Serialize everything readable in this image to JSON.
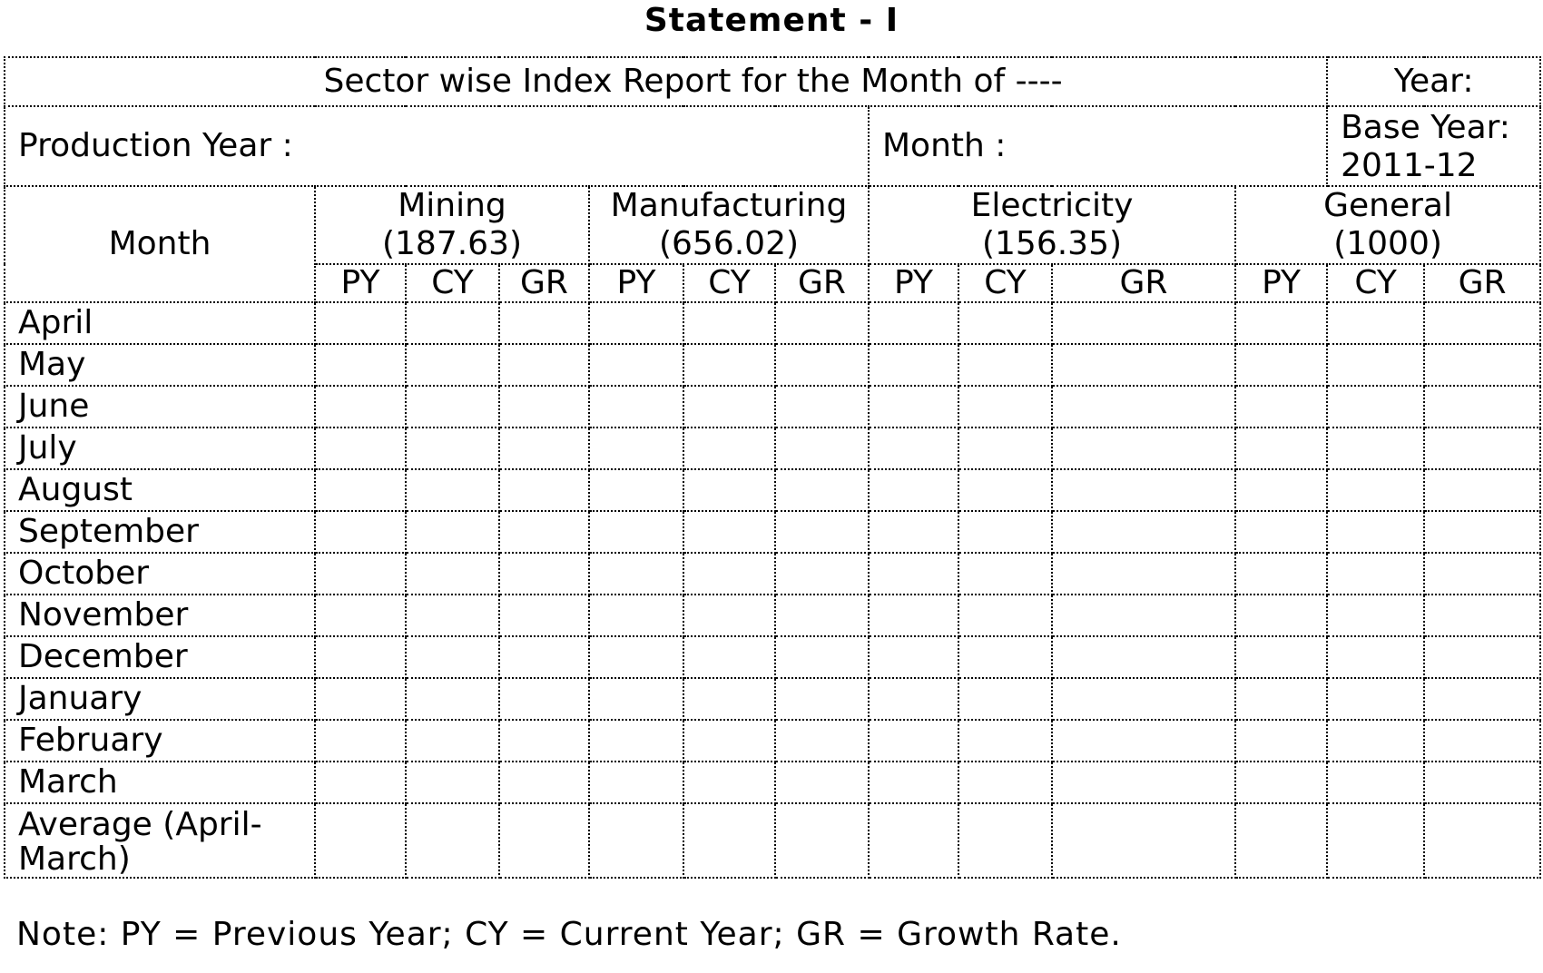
{
  "title": "Statement - I",
  "header": {
    "report_title": "Sector wise Index Report for the Month of ----",
    "year_label": "Year:",
    "production_year_label": "Production Year :",
    "month_label": "Month :",
    "base_year_label": "Base Year: 2011-12"
  },
  "table": {
    "month_header": "Month",
    "sectors": [
      {
        "name": "Mining",
        "weight": "(187.63)"
      },
      {
        "name": "Manufacturing",
        "weight": "(656.02)"
      },
      {
        "name": "Electricity",
        "weight": "(156.35)"
      },
      {
        "name": "General",
        "weight": "(1000)"
      }
    ],
    "sub_headers": [
      "PY",
      "CY",
      "GR"
    ],
    "rows": [
      "April",
      "May",
      "June",
      "July",
      "August",
      "September",
      "October",
      "November",
      "December",
      "January",
      "February",
      "March"
    ],
    "average_label": "Average (April-March)"
  },
  "note": "Note: PY = Previous Year; CY = Current Year; GR = Growth Rate."
}
